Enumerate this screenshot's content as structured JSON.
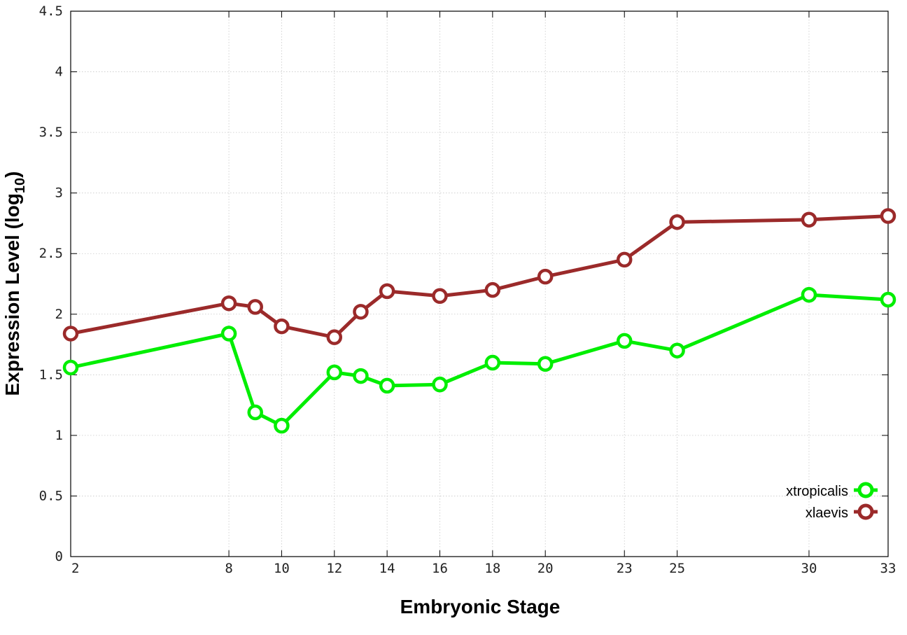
{
  "chart_data": {
    "type": "line",
    "title": "",
    "xlabel": "Embryonic Stage",
    "ylabel": "Expression Level (log",
    "ylabel_sub": "10",
    "ylabel_close": ")",
    "xlim": [
      2,
      33
    ],
    "ylim": [
      0,
      4.5
    ],
    "x_ticks": [
      2,
      8,
      10,
      12,
      14,
      16,
      18,
      20,
      23,
      25,
      30,
      33
    ],
    "y_ticks": [
      0,
      0.5,
      1,
      1.5,
      2,
      2.5,
      3,
      3.5,
      4,
      4.5
    ],
    "y_tick_labels": [
      "0",
      "0.5",
      "1",
      "1.5",
      "2",
      "2.5",
      "3",
      "3.5",
      "4",
      "4.5"
    ],
    "x": [
      2,
      8,
      9,
      10,
      12,
      13,
      14,
      16,
      18,
      20,
      23,
      25,
      30,
      33
    ],
    "grid": true,
    "legend_position": "bottom-right",
    "series": [
      {
        "name": "xtropicalis",
        "color": "#00ee00",
        "values": [
          1.56,
          1.84,
          1.19,
          1.08,
          1.52,
          1.49,
          1.41,
          1.42,
          1.6,
          1.59,
          1.78,
          1.7,
          2.16,
          2.12
        ]
      },
      {
        "name": "xlaevis",
        "color": "#9b2a2a",
        "values": [
          1.84,
          2.09,
          2.06,
          1.9,
          1.81,
          2.02,
          2.19,
          2.15,
          2.2,
          2.31,
          2.45,
          2.76,
          2.78,
          2.81
        ]
      }
    ]
  }
}
